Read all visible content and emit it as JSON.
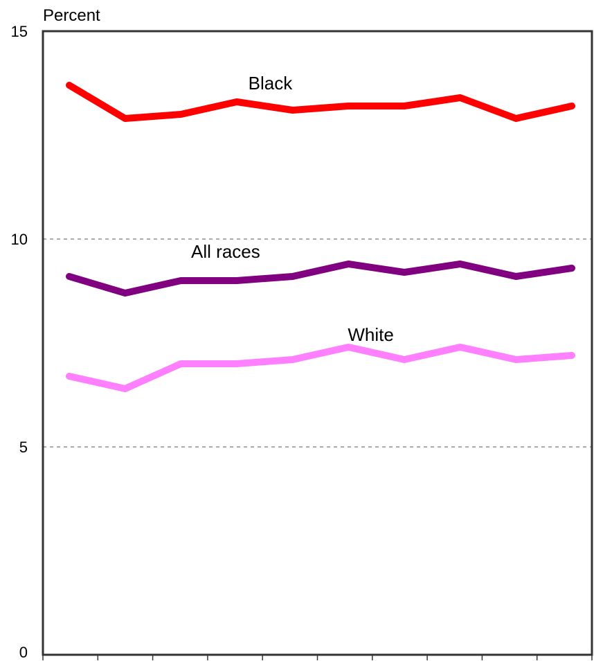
{
  "chart_data": {
    "type": "line",
    "ylabel": "Percent",
    "ylim": [
      0,
      15
    ],
    "yticks": [
      0,
      5,
      10,
      15
    ],
    "grid_y": [
      5,
      10
    ],
    "x": [
      1,
      2,
      3,
      4,
      5,
      6,
      7,
      8,
      9,
      10
    ],
    "x_tick_count": 10,
    "series": [
      {
        "name": "Black",
        "color": "#ff0000",
        "values": [
          13.7,
          12.9,
          13.0,
          13.3,
          13.1,
          13.2,
          13.2,
          13.4,
          12.9,
          13.2
        ],
        "label_anchor": {
          "index": 3.6,
          "value": 13.6
        }
      },
      {
        "name": "All races",
        "color": "#800080",
        "values": [
          9.1,
          8.7,
          9.0,
          9.0,
          9.1,
          9.4,
          9.2,
          9.4,
          9.1,
          9.3
        ],
        "label_anchor": {
          "index": 2.8,
          "value": 9.55
        }
      },
      {
        "name": "White",
        "color": "#ff80ff",
        "values": [
          6.7,
          6.4,
          7.0,
          7.0,
          7.1,
          7.4,
          7.1,
          7.4,
          7.1,
          7.2
        ],
        "label_anchor": {
          "index": 5.4,
          "value": 7.55
        }
      }
    ]
  }
}
